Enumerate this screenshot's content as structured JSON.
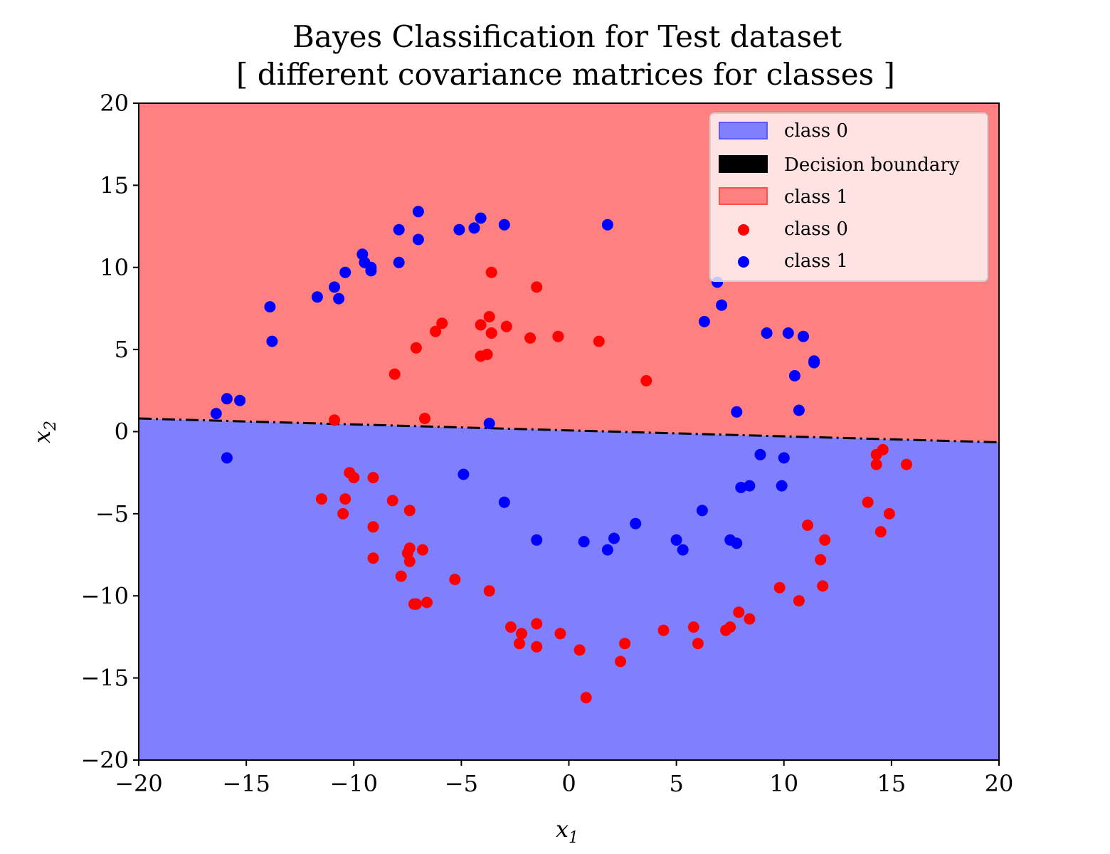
{
  "chart_data": {
    "type": "scatter",
    "title_lines": [
      "Bayes Classification for Test dataset",
      "[ different covariance matrices for classes ]"
    ],
    "xlabel_main": "x",
    "xlabel_sub": "1",
    "ylabel_main": "x",
    "ylabel_sub": "2",
    "xlim": [
      -20,
      20
    ],
    "ylim": [
      -20,
      20
    ],
    "xticks": [
      -20,
      -15,
      -10,
      -5,
      0,
      5,
      10,
      15,
      20
    ],
    "yticks": [
      -20,
      -15,
      -10,
      -5,
      0,
      5,
      10,
      15,
      20
    ],
    "xtick_labels": [
      "−20",
      "−15",
      "−10",
      "−5",
      "0",
      "5",
      "10",
      "15",
      "20"
    ],
    "ytick_labels": [
      "−20",
      "−15",
      "−10",
      "−5",
      "0",
      "5",
      "10",
      "15",
      "20"
    ],
    "decision_boundary": {
      "x": [
        -20,
        20
      ],
      "y": [
        0.8,
        -0.65
      ],
      "style": "dashdot",
      "color": "#000000"
    },
    "regions": [
      {
        "name": "class 1",
        "side": "above",
        "color": "#ff8080"
      },
      {
        "name": "class 0",
        "side": "below",
        "color": "#8080ff"
      }
    ],
    "legend": {
      "location": "upper right",
      "entries": [
        {
          "label": "class 0",
          "kind": "patch",
          "color": "#8080ff",
          "edge": "#5a5aff"
        },
        {
          "label": "Decision boundary",
          "kind": "patch",
          "color": "#000000",
          "edge": "#000000"
        },
        {
          "label": "class 1",
          "kind": "patch",
          "color": "#ff8080",
          "edge": "#ff5050"
        },
        {
          "label": "class 0",
          "kind": "marker",
          "color": "#ff0000"
        },
        {
          "label": "class 1",
          "kind": "marker",
          "color": "#0000ff"
        }
      ]
    },
    "series": [
      {
        "name": "class 0",
        "color": "#ff0000",
        "points": [
          [
            -10.9,
            0.7
          ],
          [
            -6.7,
            0.8
          ],
          [
            -8.1,
            3.5
          ],
          [
            -7.1,
            5.1
          ],
          [
            -6.2,
            6.1
          ],
          [
            -5.9,
            6.6
          ],
          [
            -4.1,
            6.5
          ],
          [
            -3.7,
            7.0
          ],
          [
            -3.6,
            6.0
          ],
          [
            -2.9,
            6.4
          ],
          [
            -3.6,
            9.7
          ],
          [
            -1.5,
            8.8
          ],
          [
            -1.8,
            5.7
          ],
          [
            -0.5,
            5.8
          ],
          [
            1.4,
            5.5
          ],
          [
            3.6,
            3.1
          ],
          [
            -4.1,
            4.6
          ],
          [
            -3.8,
            4.7
          ],
          [
            -10.2,
            -2.5
          ],
          [
            -10.0,
            -2.8
          ],
          [
            -9.1,
            -2.8
          ],
          [
            -11.5,
            -4.1
          ],
          [
            -10.4,
            -4.1
          ],
          [
            -10.5,
            -5.0
          ],
          [
            -8.2,
            -4.2
          ],
          [
            -7.4,
            -4.8
          ],
          [
            -9.1,
            -5.8
          ],
          [
            -7.4,
            -7.1
          ],
          [
            -7.5,
            -7.4
          ],
          [
            -6.8,
            -7.2
          ],
          [
            -7.4,
            -7.9
          ],
          [
            -9.1,
            -7.7
          ],
          [
            -7.8,
            -8.8
          ],
          [
            -7.1,
            -10.5
          ],
          [
            -7.2,
            -10.5
          ],
          [
            -6.6,
            -10.4
          ],
          [
            -5.3,
            -9.0
          ],
          [
            -3.7,
            -9.7
          ],
          [
            -2.7,
            -11.9
          ],
          [
            -2.2,
            -12.3
          ],
          [
            -2.3,
            -12.9
          ],
          [
            -1.5,
            -11.7
          ],
          [
            -1.5,
            -13.1
          ],
          [
            -0.4,
            -12.3
          ],
          [
            0.5,
            -13.3
          ],
          [
            0.8,
            -16.2
          ],
          [
            2.4,
            -14.0
          ],
          [
            2.6,
            -12.9
          ],
          [
            4.4,
            -12.1
          ],
          [
            5.8,
            -11.9
          ],
          [
            6.0,
            -12.9
          ],
          [
            7.3,
            -12.1
          ],
          [
            7.5,
            -11.9
          ],
          [
            7.9,
            -11.0
          ],
          [
            8.4,
            -11.4
          ],
          [
            9.8,
            -9.5
          ],
          [
            10.7,
            -10.3
          ],
          [
            11.1,
            -5.7
          ],
          [
            11.7,
            -7.8
          ],
          [
            11.8,
            -9.4
          ],
          [
            11.9,
            -6.6
          ],
          [
            13.9,
            -4.3
          ],
          [
            14.3,
            -1.4
          ],
          [
            14.3,
            -2.0
          ],
          [
            14.6,
            -1.1
          ],
          [
            14.5,
            -6.1
          ],
          [
            14.9,
            -5.0
          ],
          [
            15.7,
            -2.0
          ]
        ]
      },
      {
        "name": "class 1",
        "color": "#0000ff",
        "points": [
          [
            -16.4,
            1.1
          ],
          [
            -15.9,
            2.0
          ],
          [
            -15.3,
            1.9
          ],
          [
            -15.9,
            -1.6
          ],
          [
            -13.9,
            7.6
          ],
          [
            -13.8,
            5.5
          ],
          [
            -11.7,
            8.2
          ],
          [
            -10.9,
            8.8
          ],
          [
            -10.7,
            8.1
          ],
          [
            -10.4,
            9.7
          ],
          [
            -9.6,
            10.8
          ],
          [
            -9.5,
            10.3
          ],
          [
            -9.2,
            10.0
          ],
          [
            -9.2,
            9.8
          ],
          [
            -7.9,
            12.3
          ],
          [
            -7.9,
            10.3
          ],
          [
            -7.0,
            13.4
          ],
          [
            -7.0,
            11.7
          ],
          [
            -5.1,
            12.3
          ],
          [
            -4.4,
            12.4
          ],
          [
            -4.1,
            13.0
          ],
          [
            -3.0,
            12.6
          ],
          [
            1.8,
            12.6
          ],
          [
            -3.7,
            0.5
          ],
          [
            6.9,
            9.1
          ],
          [
            7.1,
            7.7
          ],
          [
            6.3,
            6.7
          ],
          [
            9.2,
            6.0
          ],
          [
            10.2,
            6.0
          ],
          [
            10.9,
            5.8
          ],
          [
            11.4,
            4.3
          ],
          [
            11.4,
            4.2
          ],
          [
            10.5,
            3.4
          ],
          [
            10.7,
            1.3
          ],
          [
            7.8,
            1.2
          ],
          [
            8.9,
            -1.4
          ],
          [
            10.0,
            -1.6
          ],
          [
            8.0,
            -3.4
          ],
          [
            8.4,
            -3.3
          ],
          [
            9.9,
            -3.3
          ],
          [
            6.2,
            -4.8
          ],
          [
            7.5,
            -6.6
          ],
          [
            7.8,
            -6.8
          ],
          [
            5.0,
            -6.6
          ],
          [
            5.3,
            -7.2
          ],
          [
            3.1,
            -5.6
          ],
          [
            2.1,
            -6.5
          ],
          [
            1.8,
            -7.2
          ],
          [
            0.7,
            -6.7
          ],
          [
            -1.5,
            -6.6
          ],
          [
            -3.0,
            -4.3
          ],
          [
            -4.9,
            -2.6
          ]
        ]
      }
    ]
  }
}
